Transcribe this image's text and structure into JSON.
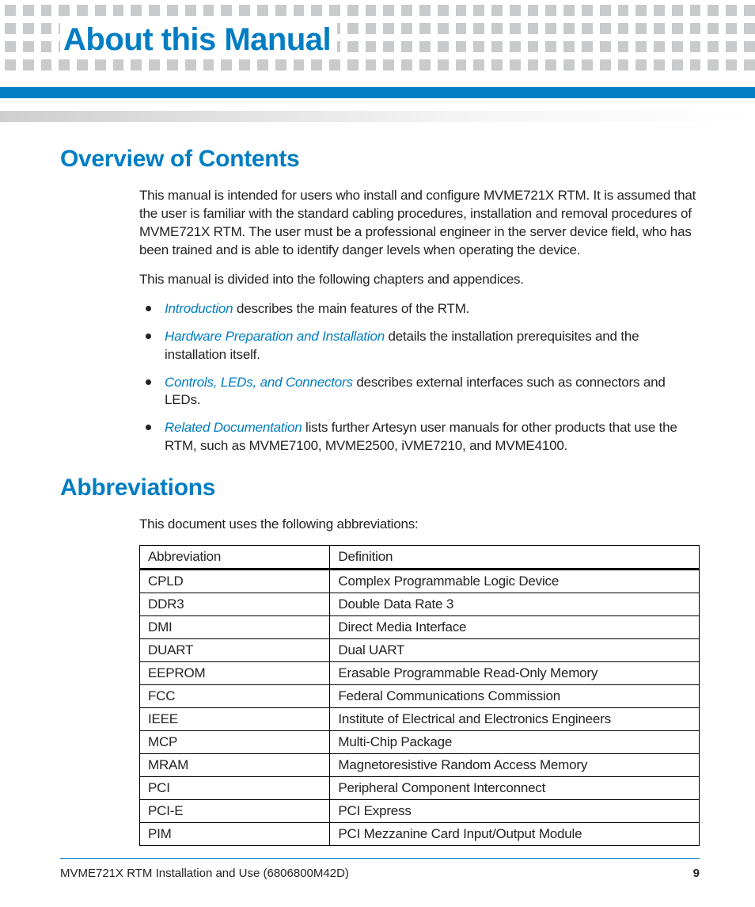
{
  "colors": {
    "accent": "#007dc3",
    "dot": "#c9cacb",
    "text": "#232323",
    "grad_start": "#cfcfcf",
    "grad_end": "#ffffff",
    "table_border": "#000000"
  },
  "header": {
    "title": "About this Manual",
    "dot_rows": 4,
    "dots_per_row": 42
  },
  "section_overview": {
    "heading": "Overview of Contents",
    "para1": "This manual is intended for users who install and configure MVME721X RTM. It is assumed that the user is familiar with the standard cabling procedures, installation and removal procedures of MVME721X RTM. The user must be a professional engineer in the server device field, who has been trained and is able to identify danger levels when operating the device.",
    "para2": "This manual is divided into the following chapters and appendices.",
    "bullets": [
      {
        "link": "Introduction",
        "rest": " describes the main features of the RTM."
      },
      {
        "link": "Hardware Preparation and Installation",
        "rest": " details the installation prerequisites and the installation itself."
      },
      {
        "link": "Controls, LEDs, and Connectors",
        "rest": " describes external interfaces such as connectors and LEDs."
      },
      {
        "link": "Related Documentation",
        "rest": " lists further Artesyn user manuals for other products that use the RTM, such as MVME7100, MVME2500, iVME7210, and MVME4100."
      }
    ]
  },
  "section_abbr": {
    "heading": "Abbreviations",
    "intro": "This document uses the following abbreviations:",
    "table": {
      "columns": [
        "Abbreviation",
        "Definition"
      ],
      "col_widths_pct": [
        34,
        66
      ],
      "rows": [
        [
          "CPLD",
          "Complex Programmable Logic Device"
        ],
        [
          "DDR3",
          "Double Data Rate 3"
        ],
        [
          "DMI",
          "Direct Media Interface"
        ],
        [
          "DUART",
          "Dual UART"
        ],
        [
          "EEPROM",
          "Erasable Programmable Read-Only Memory"
        ],
        [
          "FCC",
          "Federal Communications Commission"
        ],
        [
          "IEEE",
          "Institute of Electrical and Electronics Engineers"
        ],
        [
          "MCP",
          "Multi-Chip Package"
        ],
        [
          "MRAM",
          "Magnetoresistive Random Access Memory"
        ],
        [
          "PCI",
          "Peripheral Component Interconnect"
        ],
        [
          "PCI-E",
          "PCI Express"
        ],
        [
          "PIM",
          "PCI Mezzanine Card Input/Output Module"
        ]
      ]
    }
  },
  "footer": {
    "left": "MVME721X RTM Installation and Use (6806800M42D)",
    "page": "9"
  }
}
